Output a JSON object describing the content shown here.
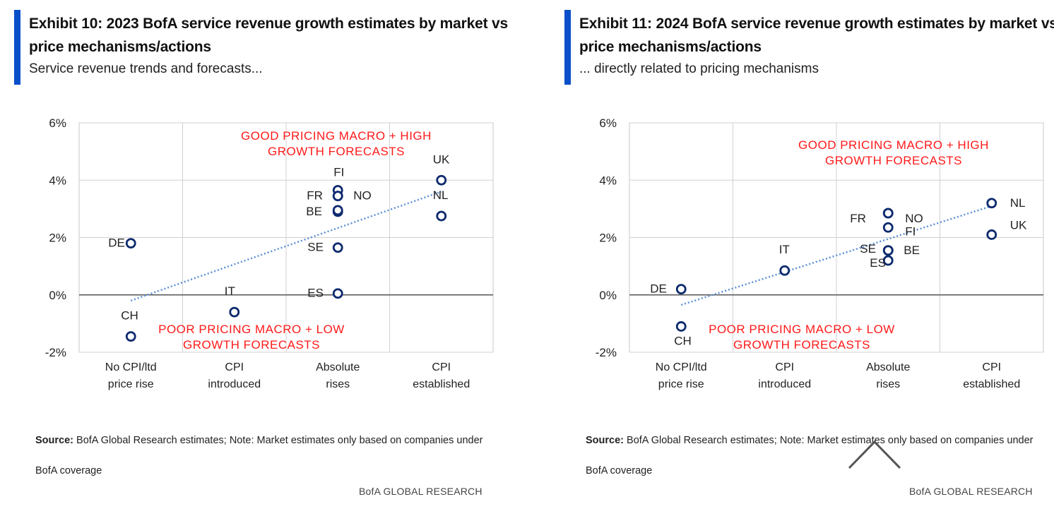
{
  "exhibits": [
    {
      "title": "Exhibit 10: 2023 BofA service revenue growth estimates by market vs price mechanisms/actions",
      "subtitle": "Service revenue trends and forecasts...",
      "source_label": "Source:",
      "source_text": " BofA Global Research estimates; Note: Market estimates only based on companies under BofA coverage",
      "brand": "BofA GLOBAL RESEARCH"
    },
    {
      "title": "Exhibit 11: 2024 BofA service revenue growth estimates by market vs price mechanisms/actions",
      "subtitle": "... directly related to pricing mechanisms",
      "source_label": "Source:",
      "source_text": " BofA Global Research estimates; Note: Market estimates only based on companies under BofA coverage",
      "brand": "BofA GLOBAL RESEARCH"
    }
  ],
  "chart_data": [
    {
      "type": "scatter",
      "title": "",
      "xlabel": "",
      "ylabel": "",
      "categories": [
        "No CPI/ltd price rise",
        "CPI introduced",
        "Absolute rises",
        "CPI established"
      ],
      "category_lines": [
        [
          "No CPI/ltd",
          "price rise"
        ],
        [
          "CPI",
          "introduced"
        ],
        [
          "Absolute",
          "rises"
        ],
        [
          "CPI",
          "established"
        ]
      ],
      "y_ticks": [
        -2,
        0,
        2,
        4,
        6
      ],
      "y_tick_labels": [
        "-2%",
        "0%",
        "2%",
        "4%",
        "6%"
      ],
      "ylim": [
        -2,
        6
      ],
      "grid": true,
      "marker_color": "#0d2a6e",
      "annotation_color": "#ff1a1a",
      "trendline": {
        "style": "dotted",
        "color": "#5b8fd6",
        "start": {
          "category": 0,
          "y": -0.2
        },
        "end": {
          "category": 3,
          "y": 3.6
        }
      },
      "points": [
        {
          "label": "DE",
          "category": 0,
          "y": 1.8
        },
        {
          "label": "CH",
          "category": 0,
          "y": -1.45
        },
        {
          "label": "IT",
          "category": 1,
          "y": -0.6
        },
        {
          "label": "FI",
          "category": 2,
          "y": 3.65
        },
        {
          "label": "FR",
          "category": 2,
          "y": 3.45
        },
        {
          "label": "NO",
          "category": 2,
          "y": 3.45
        },
        {
          "label": "BE",
          "category": 2,
          "y": 2.9
        },
        {
          "label": "",
          "category": 2,
          "y": 2.95
        },
        {
          "label": "SE",
          "category": 2,
          "y": 1.65
        },
        {
          "label": "ES",
          "category": 2,
          "y": 0.05
        },
        {
          "label": "UK",
          "category": 3,
          "y": 4.0
        },
        {
          "label": "NL",
          "category": 3,
          "y": 2.75
        }
      ],
      "annotations": [
        {
          "lines": [
            "GOOD PRICING MACRO + HIGH",
            "GROWTH FORECASTS"
          ]
        },
        {
          "lines": [
            "POOR PRICING MACRO + LOW",
            "GROWTH FORECASTS"
          ]
        }
      ]
    },
    {
      "type": "scatter",
      "title": "",
      "xlabel": "",
      "ylabel": "",
      "categories": [
        "No CPI/ltd price rise",
        "CPI introduced",
        "Absolute rises",
        "CPI established"
      ],
      "category_lines": [
        [
          "No CPI/ltd",
          "price rise"
        ],
        [
          "CPI",
          "introduced"
        ],
        [
          "Absolute",
          "rises"
        ],
        [
          "CPI",
          "established"
        ]
      ],
      "y_ticks": [
        -2,
        0,
        2,
        4,
        6
      ],
      "y_tick_labels": [
        "-2%",
        "0%",
        "2%",
        "4%",
        "6%"
      ],
      "ylim": [
        -2,
        6
      ],
      "grid": true,
      "marker_color": "#0d2a6e",
      "annotation_color": "#ff1a1a",
      "trendline": {
        "style": "dotted",
        "color": "#5b8fd6",
        "start": {
          "category": 0,
          "y": -0.35
        },
        "end": {
          "category": 3,
          "y": 3.1
        }
      },
      "points": [
        {
          "label": "DE",
          "category": 0,
          "y": 0.2
        },
        {
          "label": "CH",
          "category": 0,
          "y": -1.1
        },
        {
          "label": "IT",
          "category": 1,
          "y": 0.85
        },
        {
          "label": "FR",
          "category": 2,
          "y": 2.85
        },
        {
          "label": "NO",
          "category": 2,
          "y": 2.85
        },
        {
          "label": "FI",
          "category": 2,
          "y": 2.35
        },
        {
          "label": "SE",
          "category": 2,
          "y": 1.55
        },
        {
          "label": "BE",
          "category": 2,
          "y": 1.55
        },
        {
          "label": "ES",
          "category": 2,
          "y": 1.2
        },
        {
          "label": "NL",
          "category": 3,
          "y": 3.2
        },
        {
          "label": "UK",
          "category": 3,
          "y": 2.1
        }
      ],
      "annotations": [
        {
          "lines": [
            "GOOD PRICING MACRO + HIGH",
            "GROWTH FORECASTS"
          ]
        },
        {
          "lines": [
            "POOR PRICING MACRO + LOW",
            "GROWTH FORECASTS"
          ]
        }
      ]
    }
  ]
}
